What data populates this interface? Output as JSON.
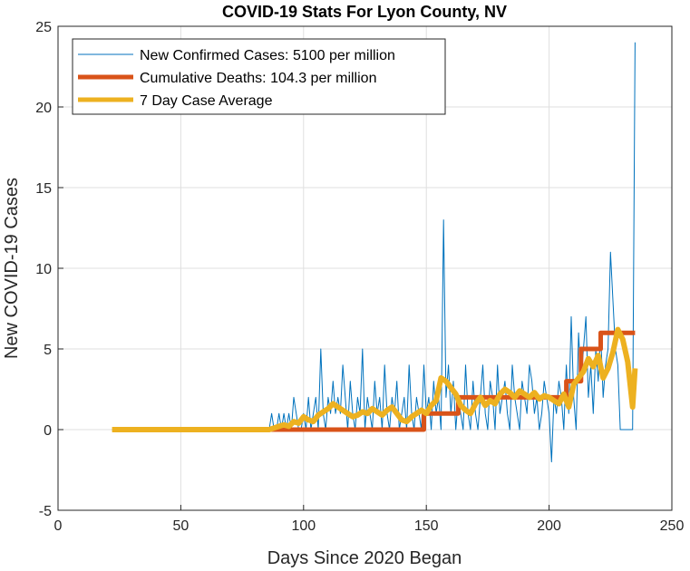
{
  "chart_data": {
    "type": "line",
    "title": "COVID-19 Stats For Lyon County, NV",
    "xlabel": "Days Since 2020 Began",
    "ylabel": "New COVID-19 Cases",
    "xlim": [
      0,
      250
    ],
    "ylim": [
      -5,
      25
    ],
    "xticks": [
      0,
      50,
      100,
      150,
      200,
      250
    ],
    "yticks": [
      -5,
      0,
      5,
      10,
      15,
      20,
      25
    ],
    "grid": true,
    "legend_position": "top-left",
    "series": [
      {
        "name": "New Confirmed Cases: 5100 per million",
        "color": "#0072BD",
        "x": [
          22,
          30,
          40,
          50,
          60,
          70,
          80,
          86,
          87,
          88,
          89,
          90,
          91,
          92,
          93,
          94,
          95,
          96,
          97,
          98,
          99,
          100,
          101,
          102,
          103,
          104,
          105,
          106,
          107,
          108,
          109,
          110,
          111,
          112,
          113,
          114,
          115,
          116,
          117,
          118,
          119,
          120,
          121,
          122,
          123,
          124,
          125,
          126,
          127,
          128,
          129,
          130,
          131,
          132,
          133,
          134,
          135,
          136,
          137,
          138,
          139,
          140,
          141,
          142,
          143,
          144,
          145,
          146,
          147,
          148,
          149,
          150,
          151,
          152,
          153,
          154,
          155,
          156,
          157,
          158,
          159,
          160,
          161,
          162,
          163,
          164,
          165,
          166,
          167,
          168,
          169,
          170,
          171,
          172,
          173,
          174,
          175,
          176,
          177,
          178,
          179,
          180,
          181,
          182,
          183,
          184,
          185,
          186,
          187,
          188,
          189,
          190,
          191,
          192,
          193,
          194,
          195,
          196,
          197,
          198,
          199,
          200,
          201,
          202,
          203,
          204,
          205,
          206,
          207,
          208,
          209,
          210,
          211,
          212,
          213,
          214,
          215,
          216,
          217,
          218,
          219,
          220,
          221,
          222,
          223,
          224,
          225,
          226,
          227,
          228,
          229,
          230,
          231,
          232,
          233,
          234,
          235
        ],
        "y": [
          0,
          0,
          0,
          0,
          0,
          0,
          0,
          0,
          1,
          0,
          0,
          1,
          0,
          1,
          0,
          1,
          0,
          2,
          1,
          0,
          0,
          1,
          0,
          2,
          0,
          1,
          2,
          0,
          5,
          1,
          0,
          2,
          1,
          3,
          1,
          2,
          1,
          4,
          2,
          0,
          3,
          1,
          0,
          2,
          1,
          5,
          0,
          2,
          1,
          0,
          3,
          1,
          2,
          0,
          4,
          1,
          0,
          2,
          1,
          3,
          0,
          1,
          2,
          0,
          4,
          1,
          0,
          2,
          1,
          0,
          4,
          1,
          2,
          0,
          3,
          1,
          2,
          0,
          13,
          2,
          4,
          1,
          3,
          0,
          2,
          1,
          0,
          4,
          1,
          0,
          3,
          1,
          0,
          2,
          4,
          1,
          0,
          3,
          2,
          0,
          4,
          1,
          2,
          3,
          1,
          0,
          4,
          2,
          1,
          0,
          3,
          2,
          1,
          4,
          3,
          1,
          2,
          0,
          1,
          3,
          2,
          1,
          -2,
          2,
          1,
          3,
          2,
          0,
          4,
          1,
          7,
          2,
          0,
          6,
          3,
          5,
          7,
          2,
          4,
          1,
          5,
          3,
          6,
          2,
          4,
          5,
          11,
          8,
          5,
          4,
          0,
          0,
          0,
          0,
          0,
          0,
          24
        ]
      },
      {
        "name": "Cumulative Deaths: 104.3 per million",
        "color": "#D95319",
        "x": [
          86,
          149,
          149,
          163,
          163,
          207,
          207,
          213,
          213,
          221,
          221,
          235
        ],
        "y": [
          0,
          0,
          1,
          1,
          2,
          2,
          3,
          3,
          5,
          5,
          6,
          6
        ]
      },
      {
        "name": "7 Day Case Average",
        "color": "#EDB120",
        "x": [
          22,
          40,
          60,
          80,
          86,
          88,
          90,
          92,
          94,
          96,
          98,
          100,
          102,
          104,
          106,
          108,
          110,
          112,
          114,
          116,
          118,
          120,
          122,
          124,
          126,
          128,
          130,
          132,
          134,
          136,
          138,
          140,
          142,
          144,
          146,
          148,
          150,
          152,
          154,
          156,
          158,
          160,
          162,
          164,
          166,
          168,
          170,
          172,
          174,
          176,
          178,
          180,
          182,
          184,
          186,
          188,
          190,
          192,
          194,
          196,
          198,
          200,
          202,
          204,
          206,
          208,
          210,
          212,
          214,
          216,
          218,
          220,
          222,
          224,
          226,
          228,
          230,
          232,
          234,
          235
        ],
        "y": [
          0,
          0,
          0,
          0,
          0,
          0.1,
          0.2,
          0.3,
          0.2,
          0.5,
          0.4,
          0.8,
          0.6,
          0.5,
          0.9,
          1.1,
          1.3,
          1.6,
          1.4,
          1.2,
          1.0,
          0.8,
          0.9,
          1.1,
          1.0,
          1.3,
          1.1,
          0.9,
          1.2,
          1.4,
          1.0,
          0.6,
          0.5,
          0.8,
          1.0,
          1.2,
          1.0,
          1.5,
          1.8,
          3.2,
          3.0,
          2.6,
          2.2,
          1.5,
          1.2,
          1.0,
          1.6,
          2.0,
          1.5,
          1.8,
          1.6,
          2.2,
          2.5,
          2.3,
          2.0,
          2.4,
          2.2,
          2.0,
          2.3,
          1.9,
          2.1,
          2.0,
          1.8,
          1.6,
          2.2,
          1.4,
          2.8,
          3.2,
          3.6,
          4.4,
          3.9,
          4.6,
          3.2,
          3.8,
          4.8,
          6.2,
          5.6,
          4.2,
          1.4,
          3.8
        ]
      }
    ]
  }
}
